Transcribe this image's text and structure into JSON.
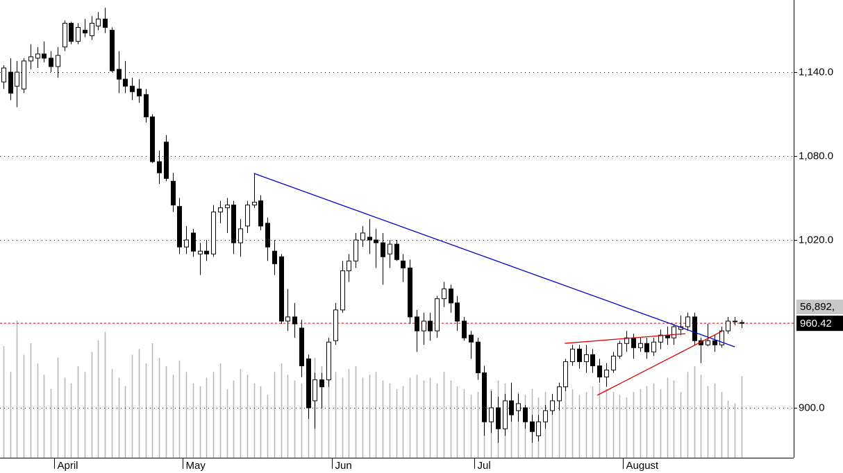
{
  "chart_data": {
    "type": "candlestick",
    "ohlc": [
      [
        1133,
        1145,
        1128,
        1143
      ],
      [
        1140,
        1150,
        1120,
        1125
      ],
      [
        1130,
        1148,
        1115,
        1140
      ],
      [
        1128,
        1150,
        1125,
        1148
      ],
      [
        1148,
        1160,
        1142,
        1151
      ],
      [
        1150,
        1158,
        1143,
        1153
      ],
      [
        1153,
        1162,
        1147,
        1150
      ],
      [
        1150,
        1155,
        1140,
        1144
      ],
      [
        1144,
        1158,
        1136,
        1152
      ],
      [
        1158,
        1177,
        1155,
        1175
      ],
      [
        1175,
        1176,
        1160,
        1162
      ],
      [
        1162,
        1175,
        1160,
        1172
      ],
      [
        1170,
        1178,
        1165,
        1168
      ],
      [
        1166,
        1180,
        1163,
        1175
      ],
      [
        1173,
        1183,
        1170,
        1178
      ],
      [
        1178,
        1186,
        1168,
        1172
      ],
      [
        1170,
        1172,
        1140,
        1141
      ],
      [
        1142,
        1155,
        1125,
        1135
      ],
      [
        1135,
        1148,
        1125,
        1130
      ],
      [
        1130,
        1136,
        1120,
        1126
      ],
      [
        1128,
        1135,
        1118,
        1123
      ],
      [
        1124,
        1128,
        1104,
        1108
      ],
      [
        1108,
        1110,
        1075,
        1076
      ],
      [
        1076,
        1084,
        1060,
        1068
      ],
      [
        1090,
        1095,
        1062,
        1064
      ],
      [
        1062,
        1068,
        1040,
        1045
      ],
      [
        1044,
        1050,
        1010,
        1015
      ],
      [
        1015,
        1030,
        1010,
        1020
      ],
      [
        1025,
        1028,
        1008,
        1012
      ],
      [
        1010,
        1018,
        995,
        1012
      ],
      [
        1012,
        1020,
        1005,
        1010
      ],
      [
        1010,
        1045,
        1008,
        1040
      ],
      [
        1040,
        1048,
        1032,
        1043
      ],
      [
        1043,
        1050,
        1025,
        1045
      ],
      [
        1045,
        1048,
        1010,
        1018
      ],
      [
        1018,
        1035,
        1008,
        1028
      ],
      [
        1030,
        1048,
        1025,
        1045
      ],
      [
        1045,
        1068,
        1043,
        1047
      ],
      [
        1048,
        1052,
        1027,
        1030
      ],
      [
        1032,
        1036,
        1005,
        1015
      ],
      [
        1012,
        1020,
        995,
        1003
      ],
      [
        1008,
        1010,
        960,
        962
      ],
      [
        962,
        985,
        955,
        965
      ],
      [
        965,
        975,
        950,
        960
      ],
      [
        957,
        963,
        922,
        930
      ],
      [
        935,
        938,
        892,
        900
      ],
      [
        905,
        925,
        885,
        920
      ],
      [
        920,
        925,
        900,
        915
      ],
      [
        920,
        950,
        915,
        947
      ],
      [
        948,
        975,
        945,
        970
      ],
      [
        970,
        1005,
        968,
        998
      ],
      [
        998,
        1010,
        990,
        1005
      ],
      [
        1005,
        1025,
        1000,
        1020
      ],
      [
        1020,
        1030,
        1015,
        1025
      ],
      [
        1022,
        1035,
        1010,
        1020
      ],
      [
        1020,
        1028,
        1000,
        1018
      ],
      [
        1018,
        1025,
        988,
        1008
      ],
      [
        1010,
        1020,
        1000,
        1017
      ],
      [
        1017,
        1020,
        1005,
        1006
      ],
      [
        1005,
        1010,
        990,
        1000
      ],
      [
        1000,
        1006,
        960,
        965
      ],
      [
        965,
        970,
        940,
        955
      ],
      [
        955,
        968,
        945,
        962
      ],
      [
        962,
        968,
        948,
        955
      ],
      [
        955,
        980,
        950,
        978
      ],
      [
        978,
        990,
        972,
        985
      ],
      [
        985,
        988,
        968,
        975
      ],
      [
        975,
        980,
        955,
        962
      ],
      [
        962,
        965,
        948,
        950
      ],
      [
        952,
        955,
        935,
        947
      ],
      [
        947,
        950,
        920,
        925
      ],
      [
        925,
        930,
        880,
        890
      ],
      [
        890,
        912,
        882,
        900
      ],
      [
        900,
        908,
        875,
        885
      ],
      [
        885,
        910,
        880,
        905
      ],
      [
        905,
        918,
        890,
        895
      ],
      [
        898,
        910,
        890,
        903
      ],
      [
        900,
        902,
        885,
        890
      ],
      [
        890,
        895,
        875,
        883
      ],
      [
        880,
        895,
        876,
        890
      ],
      [
        890,
        902,
        885,
        898
      ],
      [
        898,
        910,
        895,
        905
      ],
      [
        905,
        918,
        898,
        915
      ],
      [
        915,
        935,
        912,
        933
      ],
      [
        933,
        945,
        930,
        942
      ],
      [
        942,
        945,
        928,
        933
      ],
      [
        933,
        945,
        925,
        938
      ],
      [
        938,
        942,
        925,
        930
      ],
      [
        930,
        935,
        918,
        922
      ],
      [
        922,
        932,
        915,
        927
      ],
      [
        927,
        940,
        925,
        937
      ],
      [
        937,
        948,
        935,
        946
      ],
      [
        946,
        955,
        940,
        950
      ],
      [
        950,
        953,
        935,
        943
      ],
      [
        943,
        950,
        940,
        946
      ],
      [
        946,
        950,
        935,
        940
      ],
      [
        940,
        950,
        937,
        947
      ],
      [
        947,
        956,
        942,
        952
      ],
      [
        952,
        958,
        945,
        950
      ],
      [
        950,
        960,
        945,
        958
      ],
      [
        956,
        966,
        952,
        958
      ],
      [
        958,
        968,
        955,
        965
      ],
      [
        965,
        968,
        945,
        948
      ],
      [
        948,
        950,
        932,
        945
      ],
      [
        945,
        960,
        944,
        948
      ],
      [
        948,
        952,
        940,
        945
      ],
      [
        945,
        958,
        943,
        955
      ],
      [
        955,
        965,
        953,
        962
      ],
      [
        962,
        965,
        959,
        962
      ],
      [
        961,
        963,
        957,
        960.42
      ]
    ],
    "volume": [
      78000,
      60000,
      96000,
      72000,
      80000,
      66000,
      58000,
      48000,
      70000,
      56000,
      52000,
      64000,
      60000,
      74000,
      82000,
      88000,
      62000,
      56000,
      50000,
      72000,
      76000,
      66000,
      80000,
      70000,
      64000,
      58000,
      68000,
      60000,
      52000,
      50000,
      56000,
      60000,
      66000,
      48000,
      54000,
      62000,
      58000,
      52000,
      50000,
      44000,
      60000,
      66000,
      58000,
      54000,
      52000,
      62000,
      70000,
      64000,
      58000,
      60000,
      56000,
      62000,
      64000,
      56000,
      58000,
      60000,
      54000,
      52000,
      48000,
      50000,
      56000,
      58000,
      54000,
      56000,
      52000,
      60000,
      54000,
      50000,
      48000,
      44000,
      46000,
      50000,
      48000,
      54000,
      52000,
      48000,
      46000,
      44000,
      48000,
      42000,
      46000,
      40000,
      46000,
      50000,
      48000,
      44000,
      46000,
      50000,
      52000,
      48000,
      46000,
      44000,
      42000,
      46000,
      48000,
      50000,
      52000,
      48000,
      56000,
      54000,
      46000,
      60000,
      64000,
      58000,
      50000,
      52000,
      46000,
      40000,
      38000,
      56892
    ],
    "volume_ylim": [
      0,
      320000
    ],
    "volume_label": "56,892,",
    "price_label": "960.42",
    "xlim": [
      -0.5,
      116.7
    ],
    "xticks": [
      {
        "value": 8,
        "label": "April"
      },
      {
        "value": 27,
        "label": "May"
      },
      {
        "value": 49,
        "label": "Jun"
      },
      {
        "value": 70,
        "label": "Jul"
      },
      {
        "value": 92,
        "label": "August"
      }
    ],
    "ylim": [
      864.3,
      1191.6
    ],
    "yticks": [
      {
        "value": 900,
        "label": "900.0"
      },
      {
        "value": 1020,
        "label": "1,020.0"
      },
      {
        "value": 1080,
        "label": "1,080.0"
      },
      {
        "value": 1140,
        "label": "1,140.0"
      }
    ],
    "grid": true,
    "trendlines": [
      {
        "color": "#0000cc",
        "x": [
          37,
          108
        ],
        "values": [
          1067.6,
          943.6
        ]
      },
      {
        "color": "#dd0000",
        "x": [
          82.9,
          100.7
        ],
        "values": [
          946.1,
          953
        ]
      },
      {
        "color": "#dd0000",
        "x": [
          87.7,
          106.2
        ],
        "values": [
          909,
          955
        ]
      }
    ],
    "price_line_color": "#dd0000"
  }
}
